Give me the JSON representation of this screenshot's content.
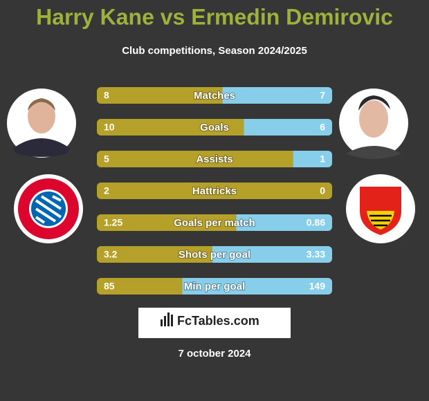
{
  "chart_data": {
    "type": "comparison",
    "title": "Harry Kane vs Ermedin Demirovic",
    "subtitle": "Club competitions, Season 2024/2025",
    "categories": [
      "Matches",
      "Goals",
      "Assists",
      "Hattricks",
      "Goals per match",
      "Shots per goal",
      "Min per goal"
    ],
    "series": [
      {
        "color": "#b5a12a",
        "values": [
          8,
          10,
          5,
          2,
          1.25,
          3.2,
          85
        ]
      },
      {
        "color": "#87ceeb",
        "values": [
          7,
          6,
          1,
          0,
          0.86,
          3.33,
          149
        ]
      }
    ],
    "source": "FcTables.com",
    "date": "7 october 2024"
  }
}
